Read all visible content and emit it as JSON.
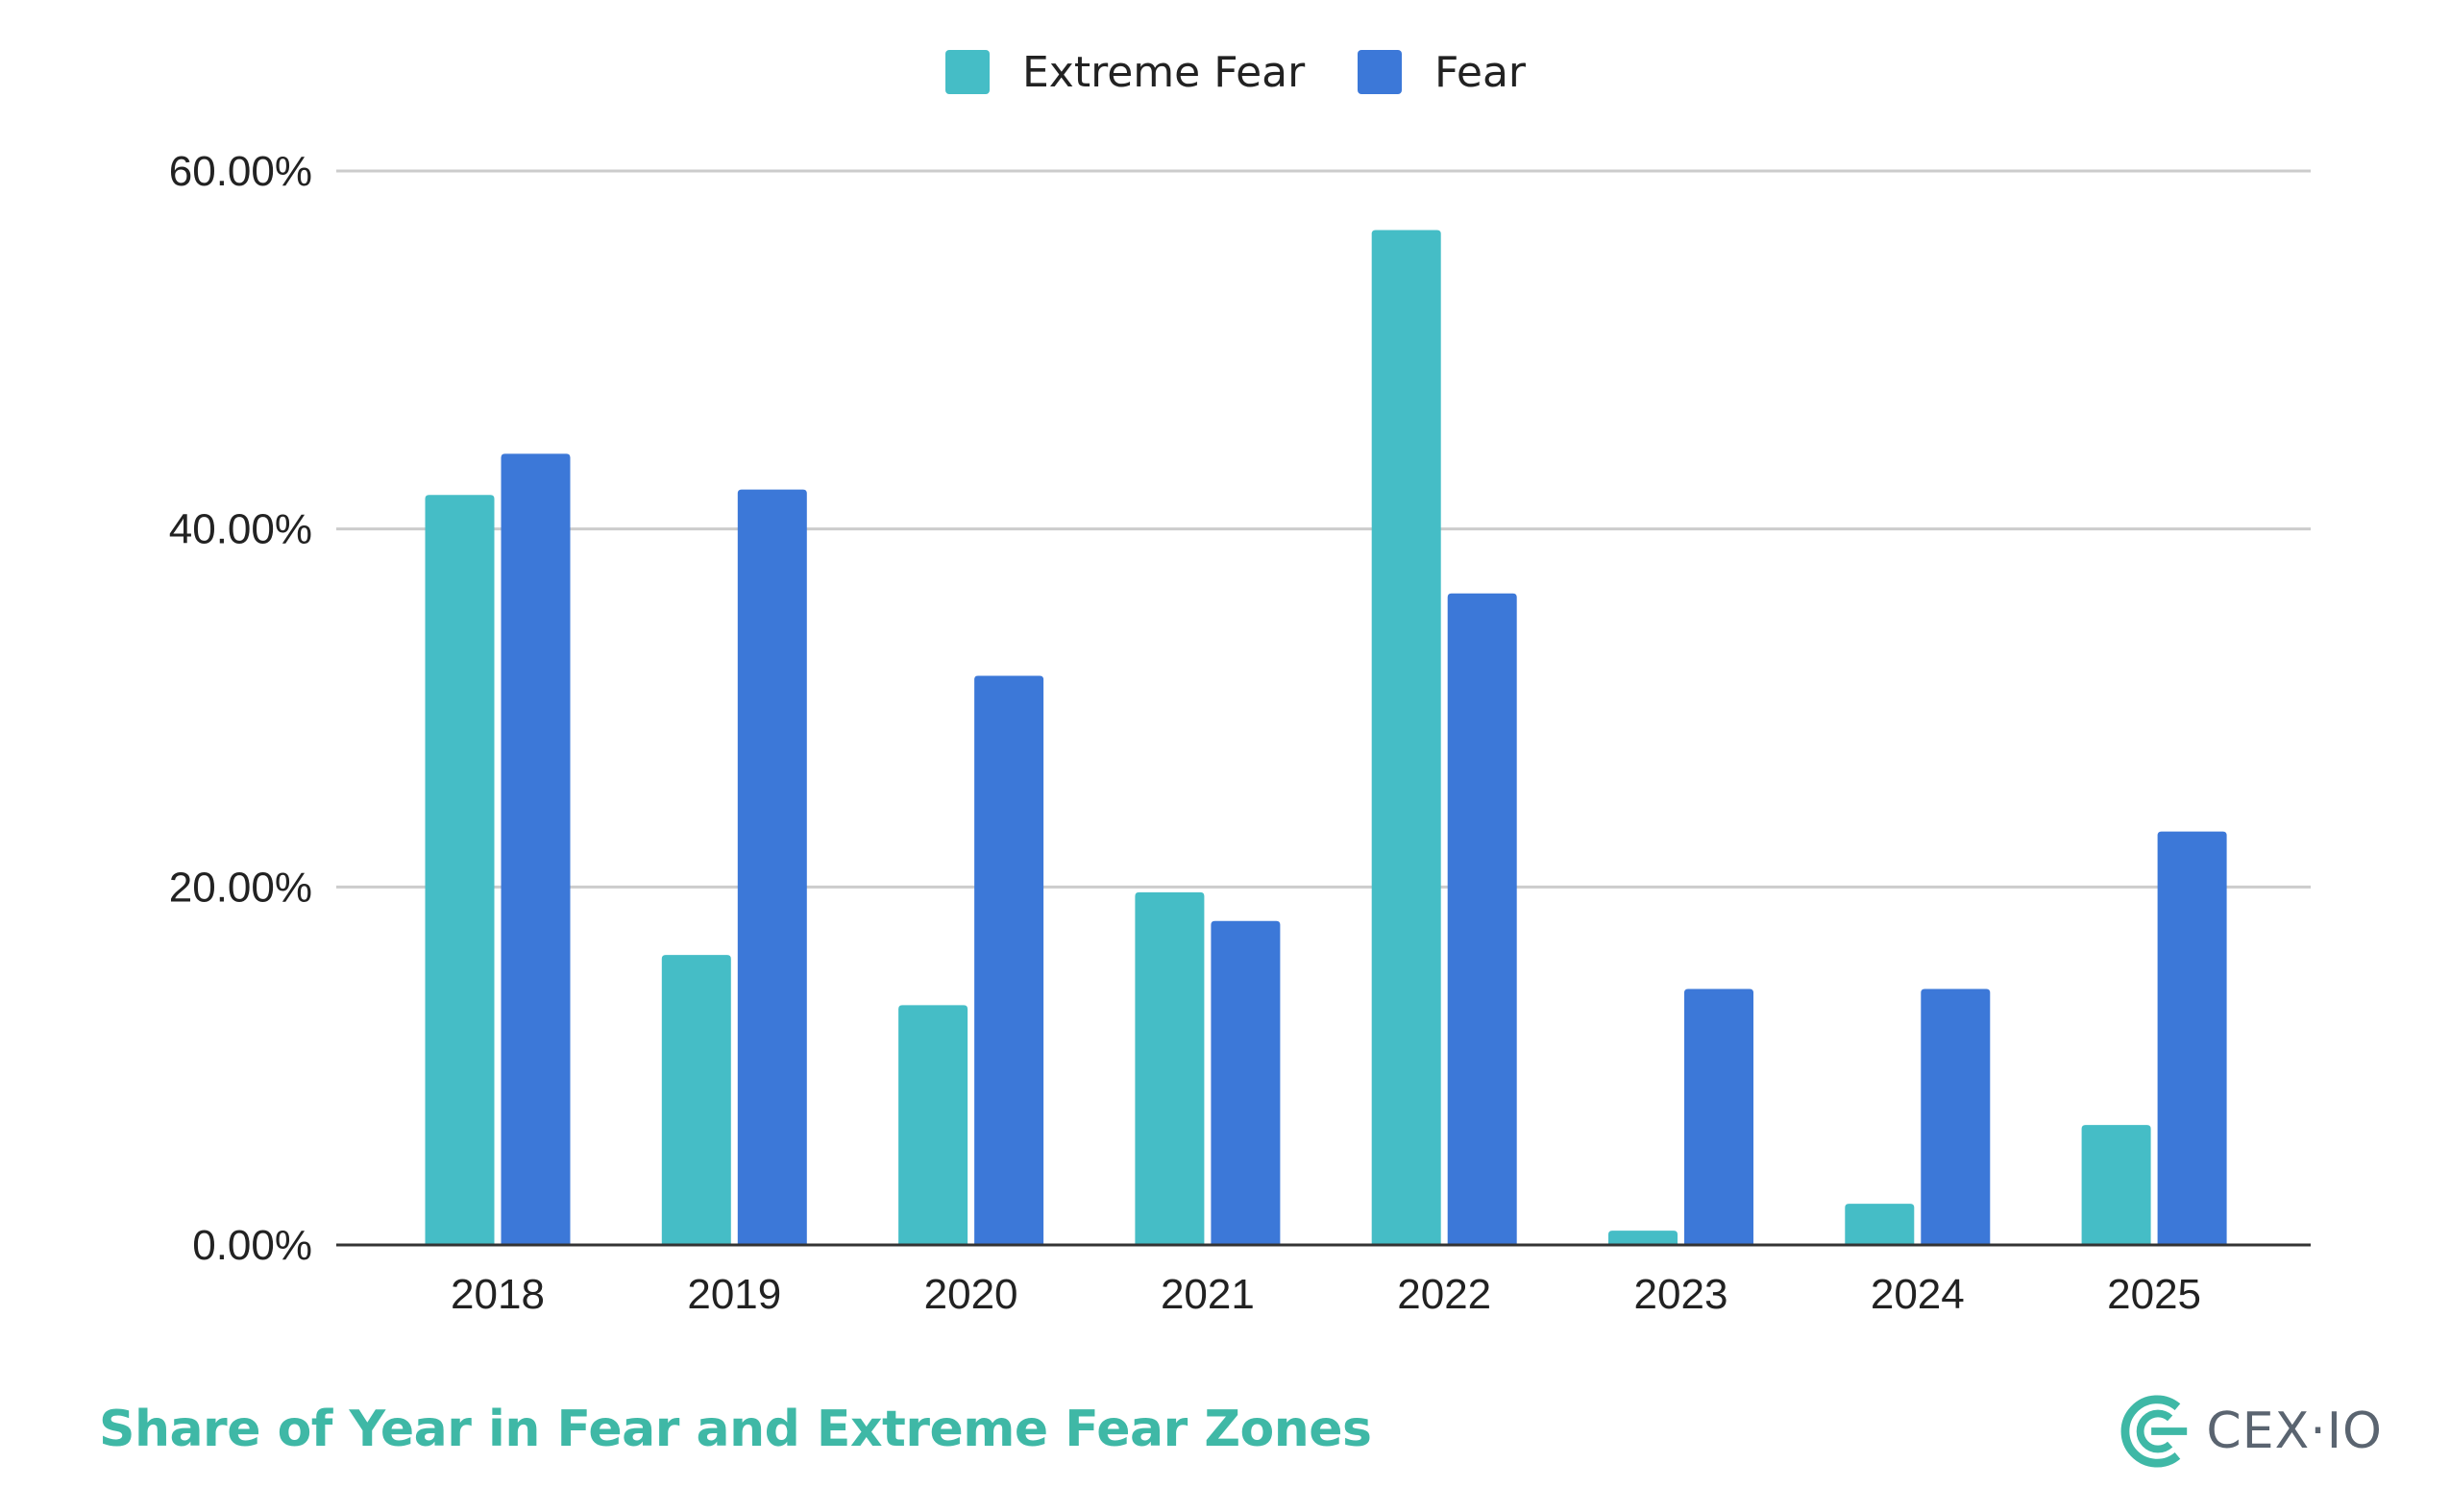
{
  "colors": {
    "extreme_fear": "#45bdc6",
    "fear": "#3c78d8",
    "gridline": "#cccccc",
    "axis": "#333333",
    "footer_title": "#3fb8a6",
    "logo_mark": "#3fb8a6",
    "logo_text": "#5a6470"
  },
  "footer": {
    "title": "Share of Year in Fear and Extreme Fear Zones"
  },
  "logo": {
    "text": "CEX·IO",
    "icon": "cex-io-logo-icon"
  },
  "chart_data": {
    "type": "bar",
    "title": "Share of Year in Fear and Extreme Fear Zones",
    "xlabel": "",
    "ylabel": "",
    "categories": [
      "2018",
      "2019",
      "2020",
      "2021",
      "2022",
      "2023",
      "2024",
      "2025"
    ],
    "series": [
      {
        "name": "Extreme Fear",
        "color": "#45bdc6",
        "values": [
          41.9,
          16.2,
          13.4,
          19.7,
          56.7,
          0.8,
          2.3,
          6.7
        ]
      },
      {
        "name": "Fear",
        "color": "#3c78d8",
        "values": [
          44.2,
          42.2,
          31.8,
          18.1,
          36.4,
          14.3,
          14.3,
          23.1
        ]
      }
    ],
    "ylim": [
      0,
      60
    ],
    "yticks": [
      0,
      20,
      40,
      60
    ],
    "ytick_labels": [
      "0.00%",
      "20.00%",
      "40.00%",
      "60.00%"
    ],
    "grid": true,
    "legend_position": "top-center"
  }
}
